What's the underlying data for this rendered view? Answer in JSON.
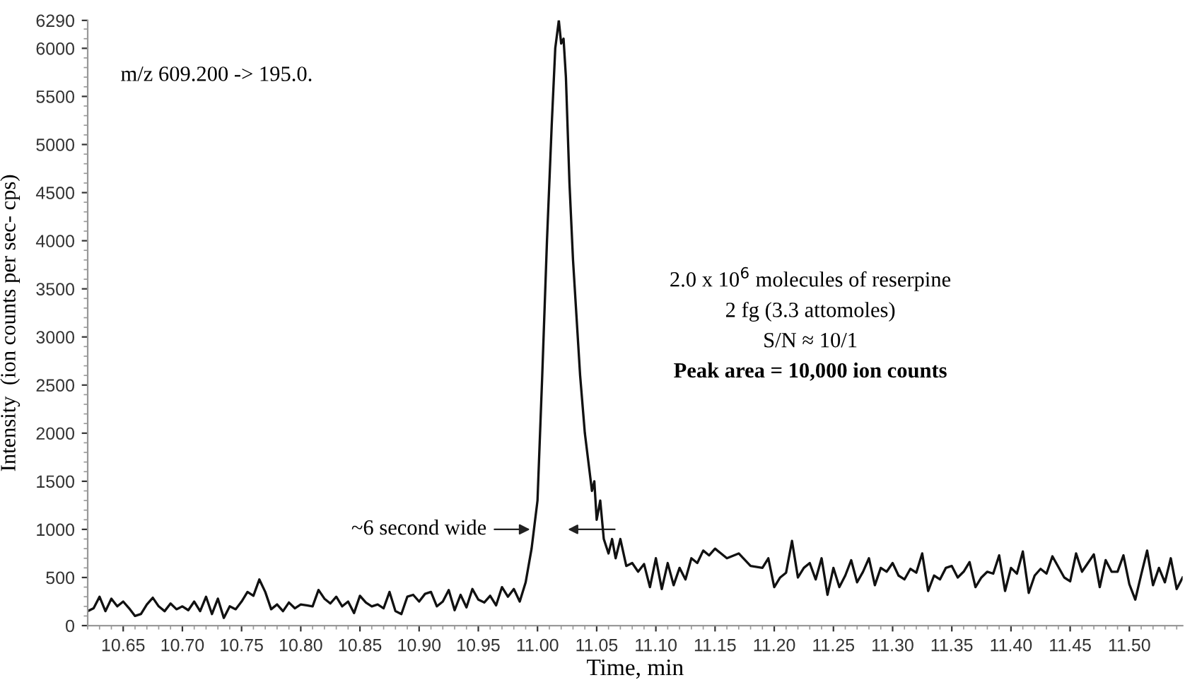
{
  "chart_data": {
    "type": "line",
    "xlabel": "Time, min",
    "ylabel": "Intensity  (ion counts per sec- cps)",
    "xlim": [
      10.62,
      11.545
    ],
    "ylim": [
      0,
      6290
    ],
    "xticks": [
      10.65,
      {
        "value": 10.7,
        "label": "10.70"
      },
      10.75,
      {
        "value": 10.8,
        "label": "10.80"
      },
      10.85,
      {
        "value": 10.9,
        "label": "10.90"
      },
      10.95,
      {
        "value": 11.0,
        "label": "11.00"
      },
      11.05,
      {
        "value": 11.1,
        "label": "11.10"
      },
      11.15,
      {
        "value": 11.2,
        "label": "11.20"
      },
      11.25,
      {
        "value": 11.3,
        "label": "11.30"
      },
      11.35,
      {
        "value": 11.4,
        "label": "11.40"
      },
      11.45,
      {
        "value": 11.5,
        "label": "11.50"
      }
    ],
    "yticks": [
      0,
      500,
      1000,
      1500,
      2000,
      2500,
      3000,
      3500,
      4000,
      4500,
      5000,
      5500,
      6000,
      6290
    ],
    "grid": false,
    "legend": false,
    "marker": "none",
    "line_style": "solid",
    "series": [
      {
        "color": "#111111",
        "x": [
          10.62,
          10.625,
          10.63,
          10.635,
          10.64,
          10.645,
          10.65,
          10.655,
          10.66,
          10.665,
          10.67,
          10.675,
          10.68,
          10.685,
          10.69,
          10.695,
          10.7,
          10.705,
          10.71,
          10.715,
          10.72,
          10.725,
          10.73,
          10.735,
          10.74,
          10.745,
          10.75,
          10.755,
          10.76,
          10.765,
          10.77,
          10.775,
          10.78,
          10.785,
          10.79,
          10.795,
          10.8,
          10.805,
          10.81,
          10.815,
          10.82,
          10.825,
          10.83,
          10.835,
          10.84,
          10.845,
          10.85,
          10.855,
          10.86,
          10.865,
          10.87,
          10.875,
          10.88,
          10.885,
          10.89,
          10.895,
          10.9,
          10.905,
          10.91,
          10.915,
          10.92,
          10.925,
          10.93,
          10.935,
          10.94,
          10.945,
          10.95,
          10.955,
          10.96,
          10.965,
          10.97,
          10.975,
          10.98,
          10.985,
          10.99,
          10.995,
          11.0,
          11.004,
          11.008,
          11.012,
          11.015,
          11.018,
          11.02,
          11.022,
          11.024,
          11.027,
          11.03,
          11.033,
          11.036,
          11.04,
          11.043,
          11.046,
          11.048,
          11.05,
          11.053,
          11.056,
          11.06,
          11.063,
          11.066,
          11.07,
          11.075,
          11.08,
          11.085,
          11.09,
          11.095,
          11.1,
          11.105,
          11.11,
          11.115,
          11.12,
          11.125,
          11.13,
          11.135,
          11.14,
          11.145,
          11.15,
          11.16,
          11.17,
          11.18,
          11.19,
          11.195,
          11.2,
          11.205,
          11.21,
          11.215,
          11.22,
          11.225,
          11.23,
          11.235,
          11.24,
          11.245,
          11.25,
          11.255,
          11.26,
          11.265,
          11.27,
          11.275,
          11.28,
          11.285,
          11.29,
          11.295,
          11.3,
          11.305,
          11.31,
          11.315,
          11.32,
          11.325,
          11.33,
          11.335,
          11.34,
          11.345,
          11.35,
          11.355,
          11.36,
          11.365,
          11.37,
          11.375,
          11.38,
          11.385,
          11.39,
          11.395,
          11.4,
          11.405,
          11.41,
          11.415,
          11.42,
          11.425,
          11.43,
          11.435,
          11.44,
          11.445,
          11.45,
          11.455,
          11.46,
          11.465,
          11.47,
          11.475,
          11.48,
          11.485,
          11.49,
          11.495,
          11.5,
          11.505,
          11.51,
          11.515,
          11.52,
          11.525,
          11.53,
          11.535,
          11.54,
          11.545
        ],
        "values": [
          150,
          180,
          300,
          150,
          280,
          200,
          250,
          180,
          100,
          120,
          220,
          290,
          200,
          150,
          230,
          170,
          200,
          160,
          250,
          150,
          300,
          120,
          280,
          80,
          200,
          170,
          250,
          350,
          310,
          480,
          350,
          170,
          220,
          150,
          240,
          180,
          220,
          210,
          200,
          370,
          280,
          230,
          300,
          200,
          250,
          130,
          310,
          240,
          200,
          220,
          180,
          350,
          150,
          120,
          300,
          320,
          250,
          330,
          350,
          200,
          250,
          370,
          160,
          320,
          190,
          380,
          270,
          240,
          310,
          210,
          400,
          300,
          380,
          250,
          450,
          800,
          1300,
          2600,
          4000,
          5200,
          6000,
          6290,
          6050,
          6100,
          5700,
          4600,
          3800,
          3200,
          2600,
          2000,
          1700,
          1400,
          1500,
          1100,
          1300,
          900,
          750,
          900,
          700,
          900,
          620,
          650,
          560,
          640,
          400,
          700,
          380,
          650,
          420,
          600,
          480,
          700,
          650,
          780,
          730,
          800,
          700,
          750,
          620,
          600,
          700,
          400,
          500,
          550,
          880,
          500,
          600,
          650,
          480,
          700,
          320,
          600,
          400,
          520,
          680,
          450,
          560,
          700,
          420,
          600,
          560,
          650,
          520,
          480,
          590,
          550,
          750,
          360,
          520,
          480,
          600,
          620,
          500,
          560,
          660,
          400,
          500,
          560,
          540,
          730,
          360,
          600,
          540,
          770,
          340,
          520,
          590,
          540,
          720,
          610,
          500,
          460,
          750,
          560,
          650,
          740,
          400,
          680,
          560,
          560,
          730,
          430,
          270,
          530,
          780,
          420,
          600,
          450,
          700,
          380,
          500
        ]
      }
    ],
    "annotations": [
      "m/z 609.200 -> 195.0.",
      {
        "text": "~6 second wide",
        "x": 10.997,
        "y": 1000
      },
      "2.0 x 10$^{6}$ molecules of reserpine",
      "2 fg (3.3 attomoles)",
      "S/N ≈ 10/1",
      "Peak area = 10,000 ion counts"
    ]
  }
}
